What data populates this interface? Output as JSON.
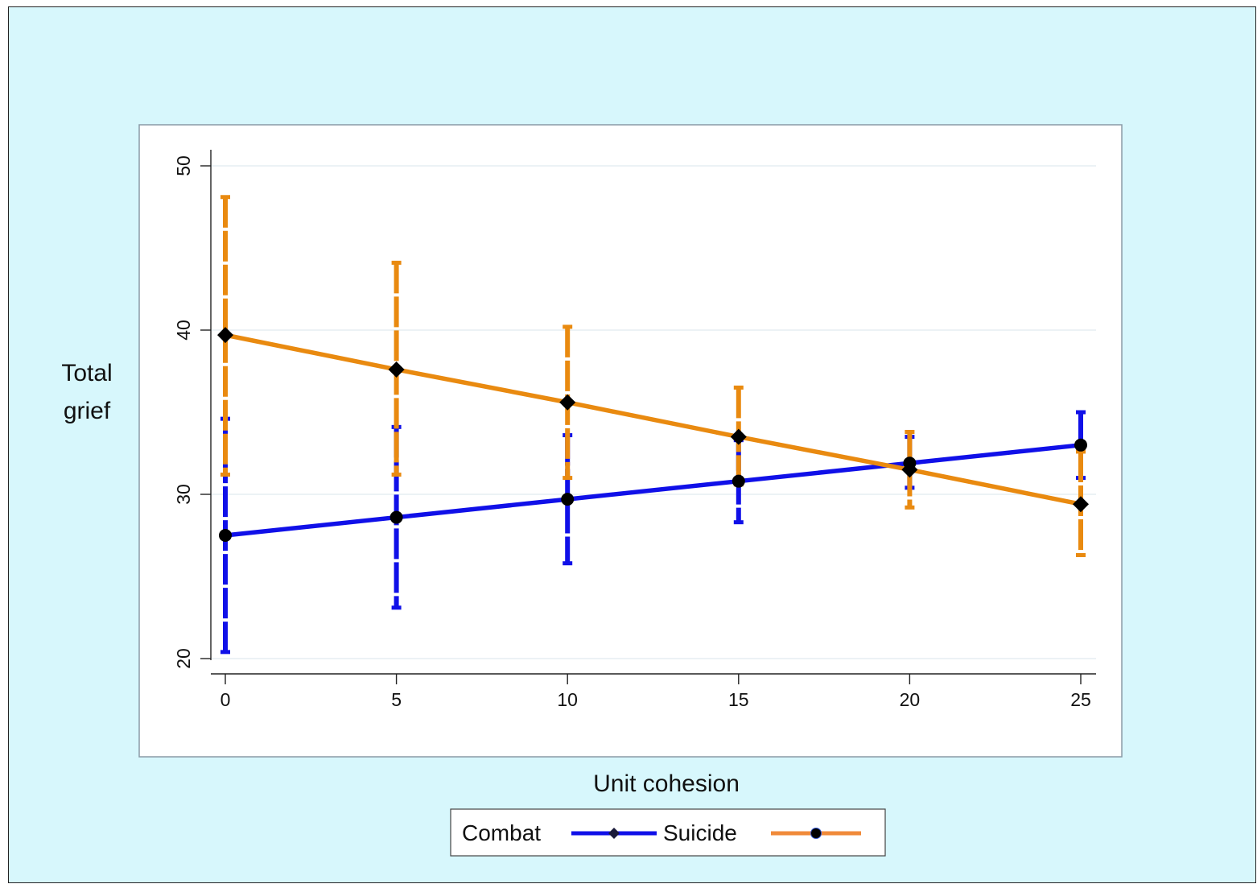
{
  "chart_data": {
    "type": "line",
    "xlabel": "Unit cohesion",
    "ylabel": [
      "Total",
      "grief"
    ],
    "x": [
      0,
      5,
      10,
      15,
      20,
      25
    ],
    "xticks": [
      0,
      5,
      10,
      15,
      20,
      25
    ],
    "yticks": [
      20,
      30,
      40,
      50
    ],
    "xlim": [
      0,
      25
    ],
    "ylim": [
      20,
      50
    ],
    "grid": true,
    "legend_position": "bottom",
    "series": [
      {
        "name": "Combat",
        "color": "#1010e8",
        "legend_marker": "diamond",
        "values": [
          27.5,
          28.6,
          29.7,
          30.8,
          31.9,
          33.0
        ],
        "ci_low": [
          20.4,
          23.1,
          25.8,
          28.3,
          30.4,
          31.0
        ],
        "ci_high": [
          34.6,
          34.1,
          33.6,
          33.3,
          33.5,
          35.0
        ]
      },
      {
        "name": "Suicide",
        "color": "#e98a10",
        "legend_marker": "circle",
        "values": [
          39.7,
          37.6,
          35.6,
          33.5,
          31.5,
          29.4
        ],
        "ci_low": [
          31.2,
          31.2,
          31.0,
          30.6,
          29.2,
          26.3
        ],
        "ci_high": [
          48.1,
          44.1,
          40.2,
          36.5,
          33.8,
          32.6
        ]
      }
    ]
  }
}
